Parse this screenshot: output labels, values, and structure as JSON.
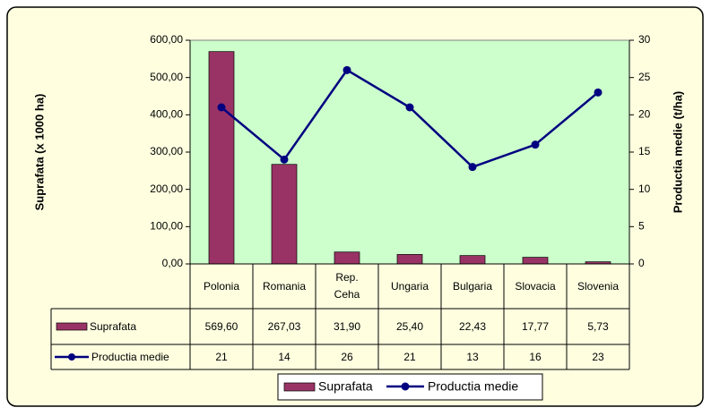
{
  "chart_data": {
    "type": "bar-line",
    "y_label": "Suprafata (x 1000 ha)",
    "y2_label": "Productia medie (t/ha)",
    "categories": [
      "Polonia",
      "Romania",
      "Rep. Ceha",
      "Ungaria",
      "Bulgaria",
      "Slovacia",
      "Slovenia"
    ],
    "series": [
      {
        "name": "Suprafata",
        "type": "bar",
        "color": "#993366",
        "axis": "y",
        "values": [
          569.6,
          267.03,
          31.9,
          25.4,
          22.43,
          17.77,
          5.73
        ],
        "value_labels": [
          "569,60",
          "267,03",
          "31,90",
          "25,40",
          "22,43",
          "17,77",
          "5,73"
        ]
      },
      {
        "name": "Productia medie",
        "type": "line",
        "color": "#000080",
        "axis": "y2",
        "values": [
          21,
          14,
          26,
          21,
          13,
          16,
          23
        ]
      }
    ],
    "ylim": [
      0,
      600
    ],
    "yticks": [
      {
        "value": 0,
        "label": "0,00"
      },
      {
        "value": 100,
        "label": "100,00"
      },
      {
        "value": 200,
        "label": "200,00"
      },
      {
        "value": 300,
        "label": "300,00"
      },
      {
        "value": 400,
        "label": "400,00"
      },
      {
        "value": 500,
        "label": "500,00"
      },
      {
        "value": 600,
        "label": "600,00"
      }
    ],
    "y2lim": [
      0,
      30
    ],
    "y2ticks": [
      0,
      5,
      10,
      15,
      20,
      25,
      30
    ],
    "grid": false,
    "legend": "bottom"
  }
}
